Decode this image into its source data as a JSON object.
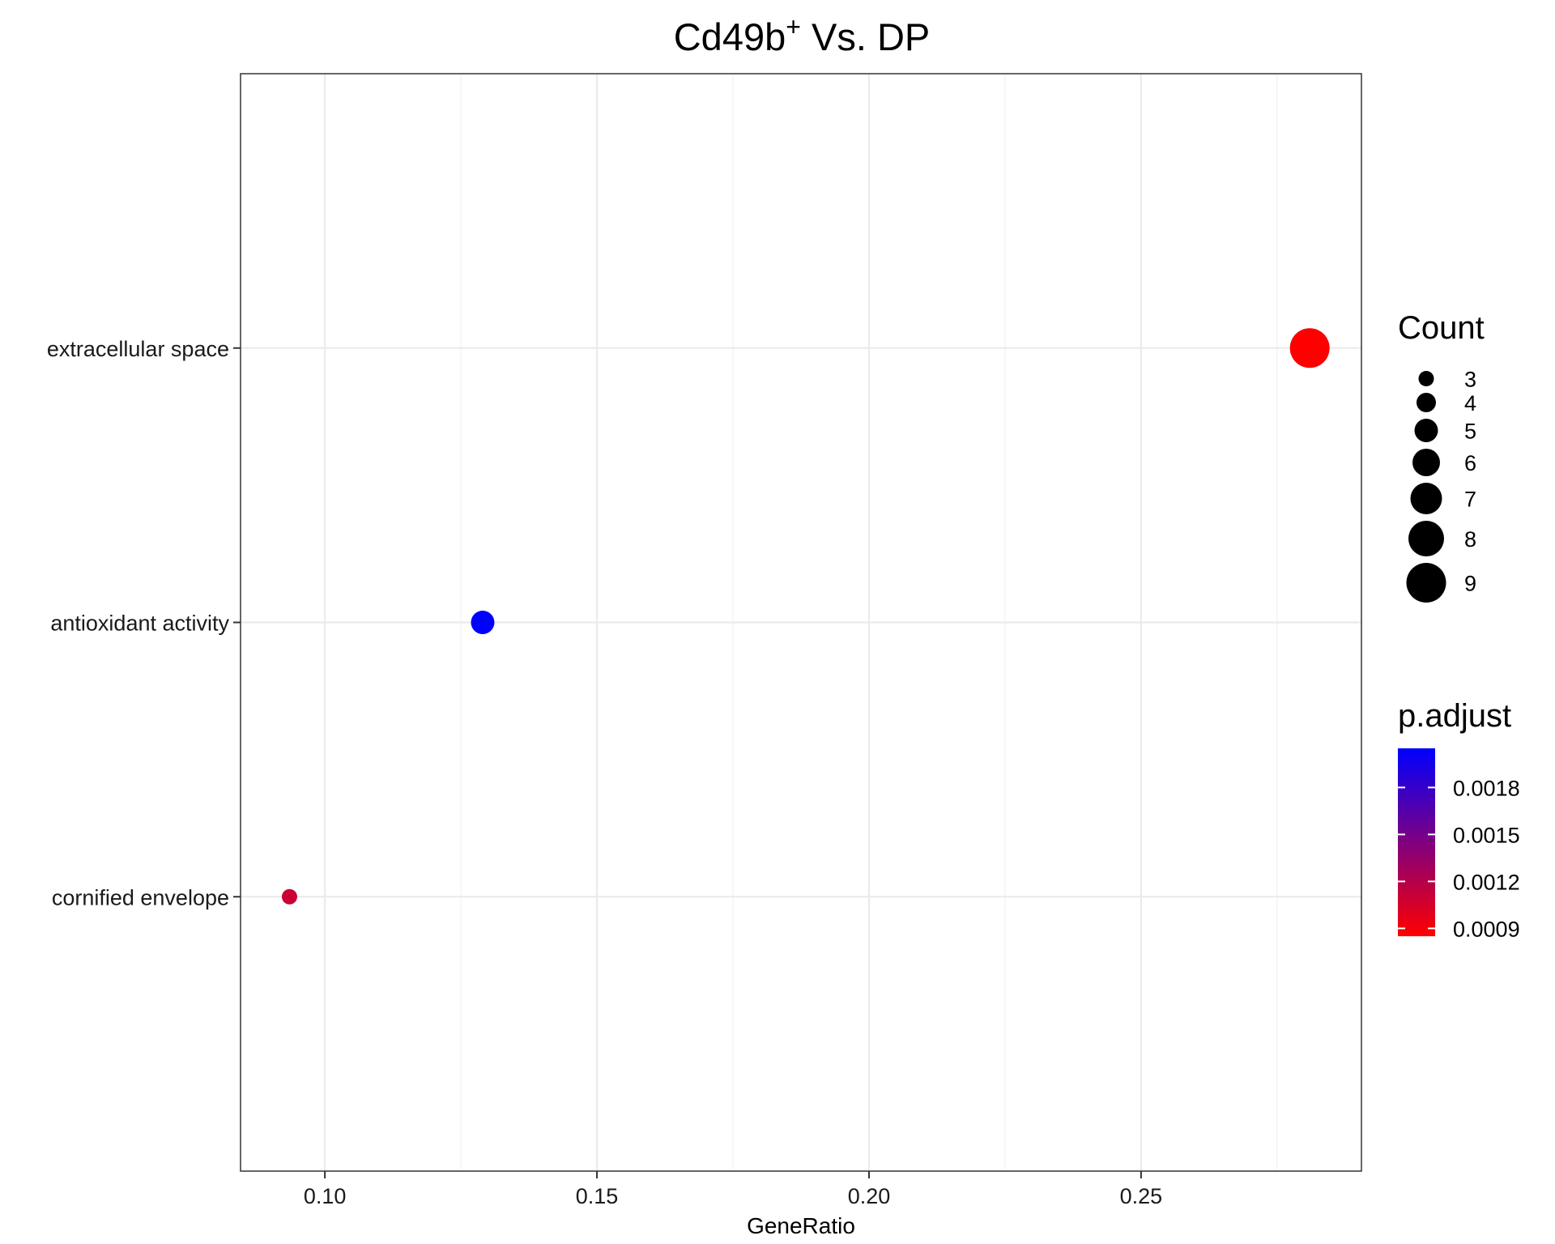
{
  "chart_data": {
    "type": "scatter",
    "title": {
      "main": "Cd49b",
      "superscript": "+",
      "suffix": " Vs. DP"
    },
    "xlabel": "GeneRatio",
    "ylabel": "",
    "xlim": [
      0.0845,
      0.2905
    ],
    "x_ticks": [
      0.1,
      0.15,
      0.2,
      0.25
    ],
    "x_tick_labels": [
      "0.10",
      "0.15",
      "0.20",
      "0.25"
    ],
    "categories": [
      "extracellular space",
      "antioxidant activity",
      "cornified envelope"
    ],
    "points": [
      {
        "category": "extracellular space",
        "x": 0.281,
        "count": 9,
        "p_adjust": 0.00085
      },
      {
        "category": "antioxidant activity",
        "x": 0.129,
        "count": 5,
        "p_adjust": 0.00205
      },
      {
        "category": "cornified envelope",
        "x": 0.0935,
        "count": 3,
        "p_adjust": 0.0011
      }
    ],
    "grid": true,
    "legend_position": "right",
    "size_legend": {
      "title": "Count",
      "values": [
        3,
        4,
        5,
        6,
        7,
        8,
        9
      ],
      "labels": [
        "3",
        "4",
        "5",
        "6",
        "7",
        "8",
        "9"
      ]
    },
    "color_legend": {
      "title": "p.adjust",
      "low_color": "#FF0000",
      "high_color": "#0000FF",
      "range": [
        0.00085,
        0.00205
      ],
      "ticks": [
        0.0009,
        0.0012,
        0.0015,
        0.0018
      ],
      "tick_labels": [
        "0.0009",
        "0.0012",
        "0.0015",
        "0.0018"
      ]
    }
  }
}
